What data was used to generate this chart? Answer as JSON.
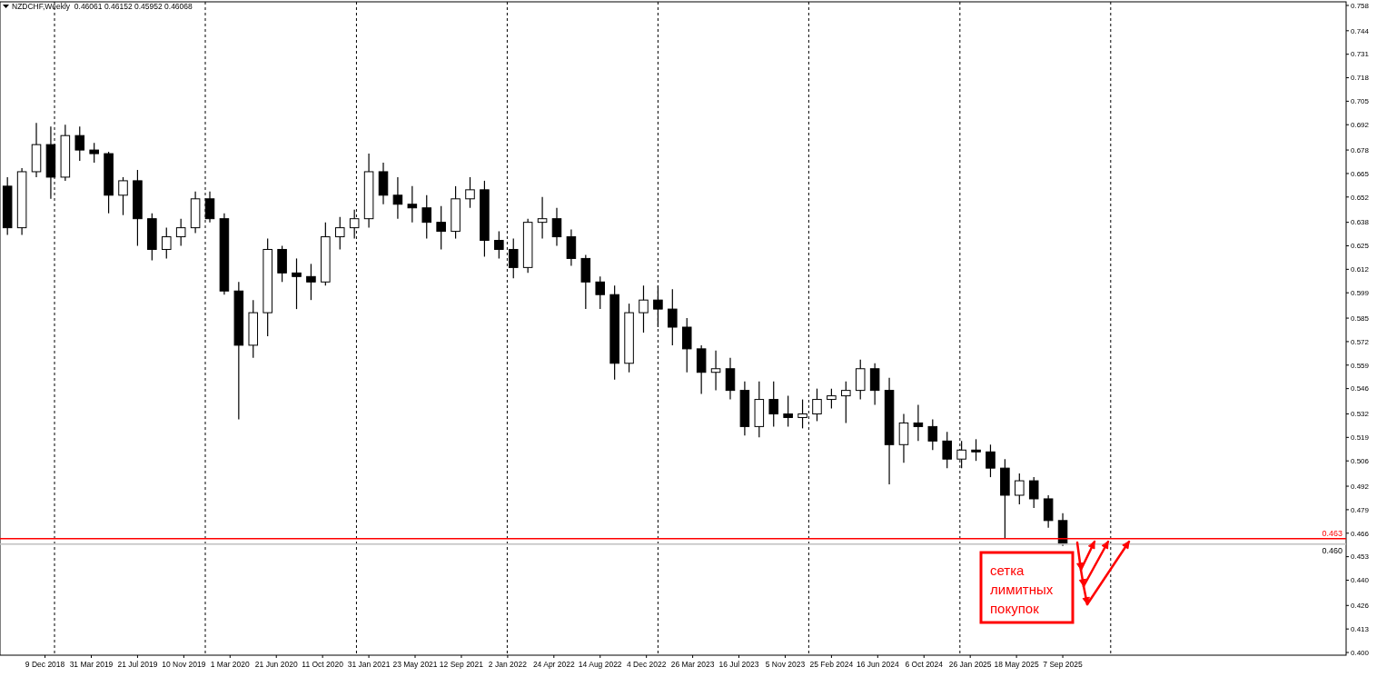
{
  "chart_data": {
    "type": "candlestick",
    "title": "NZDCHF,Weekly  0.46061 0.46152 0.45952 0.46068",
    "x": [
      "2018-09-09",
      "2018-10-14",
      "2018-11-18",
      "2018-12-23",
      "2019-01-27",
      "2019-03-03",
      "2019-04-07",
      "2019-05-12",
      "2019-06-16",
      "2019-07-21",
      "2019-08-25",
      "2019-09-29",
      "2019-11-03",
      "2019-12-08",
      "2020-01-12",
      "2020-02-16",
      "2020-03-22",
      "2020-04-26",
      "2020-05-31",
      "2020-07-05",
      "2020-08-09",
      "2020-09-13",
      "2020-10-18",
      "2020-11-22",
      "2020-12-27",
      "2021-01-31",
      "2021-03-07",
      "2021-04-11",
      "2021-05-16",
      "2021-06-20",
      "2021-07-25",
      "2021-08-29",
      "2021-10-03",
      "2021-11-07",
      "2021-12-12",
      "2022-01-16",
      "2022-02-20",
      "2022-03-27",
      "2022-05-01",
      "2022-06-05",
      "2022-07-10",
      "2022-08-14",
      "2022-09-18",
      "2022-10-23",
      "2022-11-27",
      "2023-01-01",
      "2023-02-05",
      "2023-03-12",
      "2023-04-16",
      "2023-05-21",
      "2023-06-25",
      "2023-07-30",
      "2023-09-03",
      "2023-10-08",
      "2023-11-12",
      "2023-12-17",
      "2024-01-21",
      "2024-02-25",
      "2024-03-31",
      "2024-05-05",
      "2024-06-09",
      "2024-07-14",
      "2024-08-18",
      "2024-09-22",
      "2024-10-27",
      "2024-12-01",
      "2025-01-05",
      "2025-02-09",
      "2025-03-16",
      "2025-04-20",
      "2025-05-25",
      "2025-06-29",
      "2025-08-03",
      "2025-09-07"
    ],
    "ohlc": [
      [
        0.658,
        0.663,
        0.631,
        0.635
      ],
      [
        0.635,
        0.668,
        0.631,
        0.666
      ],
      [
        0.666,
        0.693,
        0.663,
        0.681
      ],
      [
        0.681,
        0.691,
        0.651,
        0.663
      ],
      [
        0.663,
        0.692,
        0.661,
        0.686
      ],
      [
        0.686,
        0.691,
        0.672,
        0.678
      ],
      [
        0.678,
        0.682,
        0.671,
        0.676
      ],
      [
        0.676,
        0.677,
        0.643,
        0.653
      ],
      [
        0.653,
        0.663,
        0.642,
        0.661
      ],
      [
        0.661,
        0.667,
        0.625,
        0.64
      ],
      [
        0.64,
        0.643,
        0.617,
        0.623
      ],
      [
        0.623,
        0.635,
        0.618,
        0.63
      ],
      [
        0.63,
        0.64,
        0.625,
        0.635
      ],
      [
        0.635,
        0.655,
        0.632,
        0.651
      ],
      [
        0.651,
        0.655,
        0.638,
        0.64
      ],
      [
        0.64,
        0.643,
        0.598,
        0.6
      ],
      [
        0.6,
        0.605,
        0.529,
        0.57
      ],
      [
        0.57,
        0.595,
        0.563,
        0.588
      ],
      [
        0.588,
        0.629,
        0.575,
        0.623
      ],
      [
        0.623,
        0.625,
        0.605,
        0.61
      ],
      [
        0.61,
        0.618,
        0.59,
        0.608
      ],
      [
        0.608,
        0.615,
        0.595,
        0.605
      ],
      [
        0.605,
        0.638,
        0.603,
        0.63
      ],
      [
        0.63,
        0.641,
        0.623,
        0.635
      ],
      [
        0.635,
        0.645,
        0.629,
        0.64
      ],
      [
        0.64,
        0.676,
        0.635,
        0.666
      ],
      [
        0.666,
        0.671,
        0.648,
        0.653
      ],
      [
        0.653,
        0.663,
        0.64,
        0.648
      ],
      [
        0.648,
        0.658,
        0.638,
        0.646
      ],
      [
        0.646,
        0.653,
        0.629,
        0.638
      ],
      [
        0.638,
        0.647,
        0.623,
        0.633
      ],
      [
        0.633,
        0.658,
        0.629,
        0.651
      ],
      [
        0.651,
        0.663,
        0.646,
        0.656
      ],
      [
        0.656,
        0.661,
        0.619,
        0.628
      ],
      [
        0.628,
        0.633,
        0.618,
        0.623
      ],
      [
        0.623,
        0.629,
        0.607,
        0.613
      ],
      [
        0.613,
        0.64,
        0.61,
        0.638
      ],
      [
        0.638,
        0.652,
        0.629,
        0.64
      ],
      [
        0.64,
        0.646,
        0.625,
        0.63
      ],
      [
        0.63,
        0.634,
        0.614,
        0.618
      ],
      [
        0.618,
        0.62,
        0.59,
        0.605
      ],
      [
        0.605,
        0.608,
        0.59,
        0.598
      ],
      [
        0.598,
        0.603,
        0.551,
        0.56
      ],
      [
        0.56,
        0.593,
        0.555,
        0.588
      ],
      [
        0.588,
        0.603,
        0.577,
        0.595
      ],
      [
        0.595,
        0.603,
        0.58,
        0.59
      ],
      [
        0.59,
        0.601,
        0.57,
        0.58
      ],
      [
        0.58,
        0.585,
        0.555,
        0.568
      ],
      [
        0.568,
        0.57,
        0.543,
        0.555
      ],
      [
        0.555,
        0.567,
        0.545,
        0.557
      ],
      [
        0.557,
        0.563,
        0.54,
        0.545
      ],
      [
        0.545,
        0.55,
        0.52,
        0.525
      ],
      [
        0.525,
        0.55,
        0.519,
        0.54
      ],
      [
        0.54,
        0.55,
        0.525,
        0.532
      ],
      [
        0.532,
        0.542,
        0.525,
        0.53
      ],
      [
        0.53,
        0.54,
        0.524,
        0.532
      ],
      [
        0.532,
        0.546,
        0.528,
        0.54
      ],
      [
        0.54,
        0.546,
        0.535,
        0.542
      ],
      [
        0.542,
        0.55,
        0.527,
        0.545
      ],
      [
        0.545,
        0.562,
        0.54,
        0.557
      ],
      [
        0.557,
        0.56,
        0.537,
        0.545
      ],
      [
        0.545,
        0.552,
        0.493,
        0.515
      ],
      [
        0.515,
        0.532,
        0.505,
        0.527
      ],
      [
        0.527,
        0.537,
        0.517,
        0.525
      ],
      [
        0.525,
        0.529,
        0.512,
        0.517
      ],
      [
        0.517,
        0.522,
        0.502,
        0.507
      ],
      [
        0.507,
        0.517,
        0.502,
        0.512
      ],
      [
        0.512,
        0.518,
        0.506,
        0.511
      ],
      [
        0.511,
        0.515,
        0.497,
        0.502
      ],
      [
        0.502,
        0.507,
        0.463,
        0.487
      ],
      [
        0.487,
        0.499,
        0.482,
        0.495
      ],
      [
        0.495,
        0.497,
        0.48,
        0.485
      ],
      [
        0.485,
        0.487,
        0.469,
        0.473
      ],
      [
        0.473,
        0.477,
        0.459,
        0.46
      ]
    ],
    "xlim": [
      "2018-08-22",
      "2027-07-25"
    ],
    "xticks": [
      {
        "value": "2018-12-09",
        "label": "9 Dec 2018"
      },
      {
        "value": "2019-03-31",
        "label": "31 Mar 2019"
      },
      {
        "value": "2019-07-21",
        "label": "21 Jul 2019"
      },
      {
        "value": "2019-11-10",
        "label": "10 Nov 2019"
      },
      {
        "value": "2020-03-01",
        "label": "1 Mar 2020"
      },
      {
        "value": "2020-06-21",
        "label": "21 Jun 2020"
      },
      {
        "value": "2020-10-11",
        "label": "11 Oct 2020"
      },
      {
        "value": "2021-01-31",
        "label": "31 Jan 2021"
      },
      {
        "value": "2021-05-23",
        "label": "23 May 2021"
      },
      {
        "value": "2021-09-12",
        "label": "12 Sep 2021"
      },
      {
        "value": "2022-01-02",
        "label": "2 Jan 2022"
      },
      {
        "value": "2022-04-24",
        "label": "24 Apr 2022"
      },
      {
        "value": "2022-08-14",
        "label": "14 Aug 2022"
      },
      {
        "value": "2022-12-04",
        "label": "4 Dec 2022"
      },
      {
        "value": "2023-03-26",
        "label": "26 Mar 2023"
      },
      {
        "value": "2023-07-16",
        "label": "16 Jul 2023"
      },
      {
        "value": "2023-11-05",
        "label": "5 Nov 2023"
      },
      {
        "value": "2024-02-25",
        "label": "25 Feb 2024"
      },
      {
        "value": "2024-06-16",
        "label": "16 Jun 2024"
      },
      {
        "value": "2024-10-06",
        "label": "6 Oct 2024"
      },
      {
        "value": "2025-01-26",
        "label": "26 Jan 2025"
      },
      {
        "value": "2025-05-18",
        "label": "18 May 2025"
      },
      {
        "value": "2025-09-07",
        "label": "7 Sep 2025"
      }
    ],
    "ylim": [
      0.3985,
      0.76
    ],
    "yticks": [
      0.758,
      0.744,
      0.731,
      0.718,
      0.705,
      0.692,
      0.678,
      0.665,
      0.652,
      0.638,
      0.625,
      0.612,
      0.599,
      0.585,
      0.572,
      0.559,
      0.546,
      0.532,
      0.519,
      0.506,
      0.492,
      0.479,
      0.466,
      0.453,
      {
        "value": 0.44,
        "label": "0.440"
      },
      0.426,
      0.413,
      {
        "value": 0.4,
        "label": "0.400"
      }
    ],
    "ref_lines": [
      {
        "axis": "y",
        "value": 0.463,
        "label": "0.463",
        "color": "#ff0000",
        "line_style": "solid"
      },
      {
        "axis": "y",
        "value": 0.46,
        "label": "0.460",
        "color": "#c0c0c0",
        "line_style": "solid"
      },
      {
        "axis": "x",
        "value": "2019-01-01",
        "color": "#000000",
        "line_style": "dashed"
      },
      {
        "axis": "x",
        "value": "2020-01-01",
        "color": "#000000",
        "line_style": "dashed"
      },
      {
        "axis": "x",
        "value": "2021-01-01",
        "color": "#000000",
        "line_style": "dashed"
      },
      {
        "axis": "x",
        "value": "2022-01-01",
        "color": "#000000",
        "line_style": "dashed"
      },
      {
        "axis": "x",
        "value": "2023-01-01",
        "color": "#000000",
        "line_style": "dashed"
      },
      {
        "axis": "x",
        "value": "2024-01-01",
        "color": "#000000",
        "line_style": "dashed"
      },
      {
        "axis": "x",
        "value": "2025-01-01",
        "color": "#000000",
        "line_style": "dashed"
      },
      {
        "axis": "x",
        "value": "2026-01-01",
        "color": "#000000",
        "line_style": "dashed"
      }
    ],
    "annotations": [
      "сетка лимитных покупок"
    ]
  }
}
